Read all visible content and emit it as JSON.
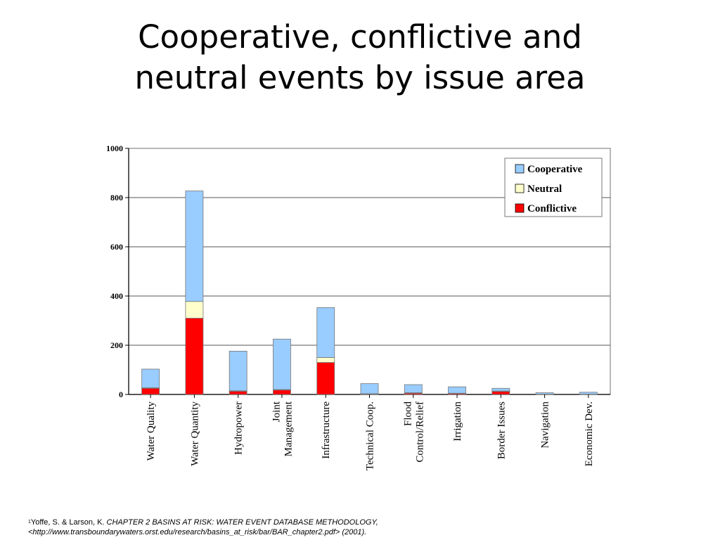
{
  "slide": {
    "title_line1": "Cooperative, conflictive and",
    "title_line2": "neutral events by issue area"
  },
  "chart_data": {
    "type": "bar",
    "stacked": true,
    "categories": [
      [
        "Water Quality"
      ],
      [
        "Water Quantity"
      ],
      [
        "Hydropower"
      ],
      [
        "Joint",
        "Management"
      ],
      [
        "Infrastructure"
      ],
      [
        "Technical Coop."
      ],
      [
        "Flood",
        "Control/Relief"
      ],
      [
        "Irrigation"
      ],
      [
        "Border Issues"
      ],
      [
        "Navigation"
      ],
      [
        "Economic Dev."
      ]
    ],
    "series": [
      {
        "name": "Conflictive",
        "color": "#ff0000",
        "values": [
          25,
          310,
          13,
          18,
          130,
          2,
          5,
          4,
          12,
          1,
          1
        ]
      },
      {
        "name": "Neutral",
        "color": "#ffffcc",
        "values": [
          2,
          68,
          2,
          2,
          20,
          1,
          2,
          1,
          2,
          0,
          0
        ]
      },
      {
        "name": "Cooperative",
        "color": "#99ccff",
        "values": [
          76,
          449,
          161,
          205,
          203,
          41,
          33,
          26,
          11,
          6,
          8
        ]
      }
    ],
    "legend_order": [
      "Cooperative",
      "Neutral",
      "Conflictive"
    ],
    "legend_position": "top-right",
    "ylim": [
      0,
      1000
    ],
    "yticks": [
      0,
      200,
      400,
      600,
      800,
      1000
    ],
    "grid": true
  },
  "footnote": {
    "sup": "1",
    "authors": "Yoffe, S. & Larson, K. ",
    "title_italic": "CHAPTER 2 BASINS AT RISK: WATER EVENT DATABASE METHODOLOGY,",
    "line2": "<http://www.transboundarywaters.orst.edu/research/basins_at_risk/bar/BAR_chapter2.pdf> (2001)."
  }
}
